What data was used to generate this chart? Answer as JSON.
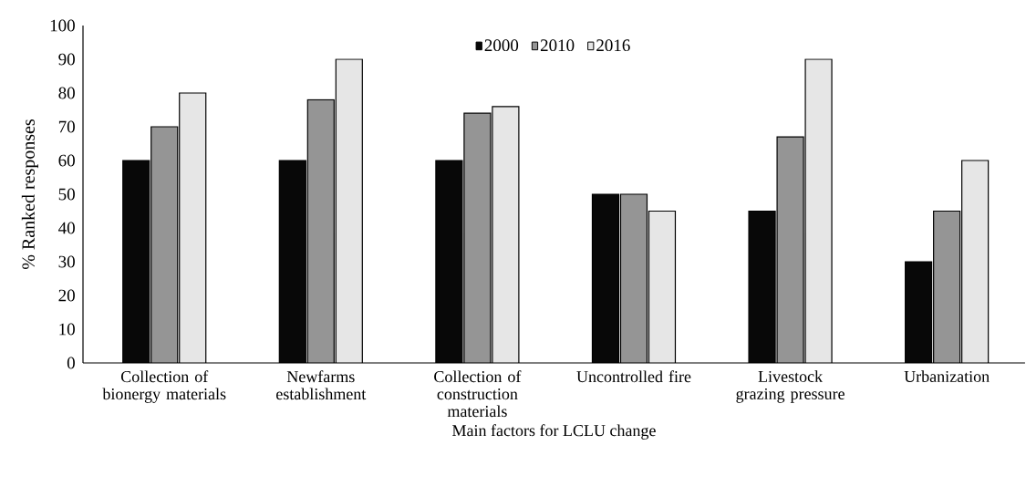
{
  "chart_data": {
    "type": "bar",
    "xlabel": "Main factors for LCLU change",
    "ylabel": "% Ranked responses",
    "categories": [
      "Collection of bionergy materials",
      "Newfarms establishment",
      "Collection of construction materials",
      "Uncontrolled fire",
      "Livestock grazing pressure",
      "Urbanization"
    ],
    "series": [
      {
        "name": "2000",
        "color": "#080808",
        "values": [
          60,
          60,
          60,
          50,
          45,
          30
        ]
      },
      {
        "name": "2010",
        "color": "#959595",
        "values": [
          70,
          78,
          74,
          50,
          67,
          45
        ]
      },
      {
        "name": "2016",
        "color": "#e6e6e6",
        "values": [
          80,
          90,
          76,
          45,
          90,
          60
        ]
      }
    ],
    "ylim": [
      0,
      100
    ],
    "yticks": [
      0,
      10,
      20,
      30,
      40,
      50,
      60,
      70,
      80,
      90,
      100
    ],
    "grid": false,
    "legend": "top"
  }
}
